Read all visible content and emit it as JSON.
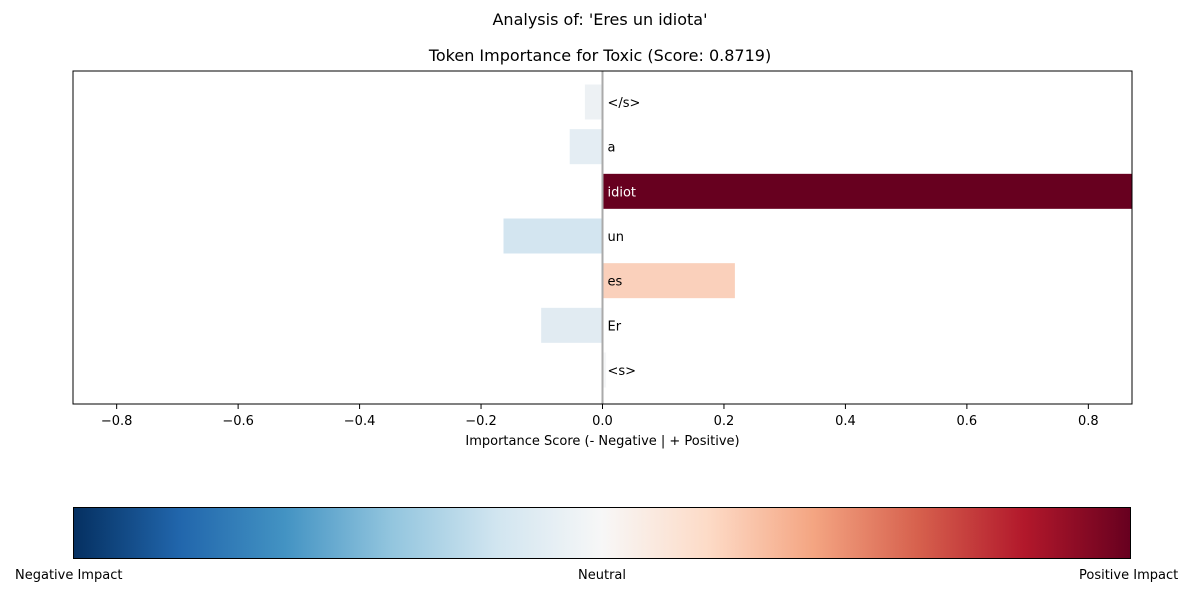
{
  "figure": {
    "suptitle": "Analysis of: 'Eres un idiota'",
    "title": "Token Importance for Toxic (Score: 0.8719)"
  },
  "chart_data": {
    "type": "bar",
    "orientation": "horizontal",
    "xlabel": "Importance Score (- Negative | + Positive)",
    "xlim": [
      -0.8719,
      0.8719
    ],
    "xticks": [
      -0.8,
      -0.6,
      -0.4,
      -0.2,
      0.0,
      0.2,
      0.4,
      0.6,
      0.8
    ],
    "xtick_labels": [
      "−0.8",
      "−0.6",
      "−0.4",
      "−0.2",
      "0.0",
      "0.2",
      "0.4",
      "0.6",
      "0.8"
    ],
    "yticks": false,
    "grid": false,
    "zero_line_color": "#aaaaaa",
    "categories": [
      "<s>",
      "Er",
      "es",
      "un",
      "idiot",
      "a",
      "</s>"
    ],
    "values": [
      0.006,
      -0.101,
      0.218,
      -0.163,
      0.8719,
      -0.054,
      -0.029
    ],
    "colors": [
      "#f5f6f7",
      "#e1ebf2",
      "#fad0bb",
      "#d3e5f0",
      "#67001f",
      "#e4edf3",
      "#edf1f4"
    ],
    "label_colors": [
      "#000000",
      "#000000",
      "#000000",
      "#000000",
      "#ffffff",
      "#000000",
      "#000000"
    ]
  },
  "colorbar": {
    "colormap": "RdBu_r",
    "stops": [
      "#053061",
      "#2166ac",
      "#4393c3",
      "#92c5de",
      "#d1e5f0",
      "#f7f7f7",
      "#fddbc7",
      "#f4a582",
      "#d6604d",
      "#b2182b",
      "#67001f"
    ],
    "labels": {
      "negative": "Negative Impact",
      "neutral": "Neutral",
      "positive": "Positive Impact"
    }
  }
}
